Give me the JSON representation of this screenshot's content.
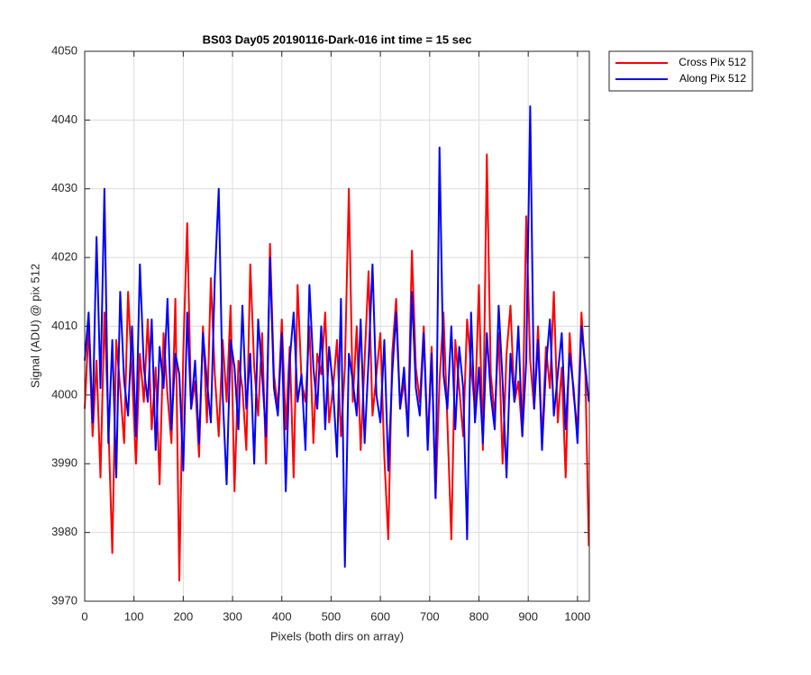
{
  "chart_data": {
    "type": "line",
    "title": "BS03 Day05 20190116-Dark-016 int time = 15 sec",
    "xlabel": "Pixels (both dirs on array)",
    "ylabel": "Signal (ADU) @ pix 512",
    "x": [
      0,
      8,
      16,
      24,
      32,
      40,
      48,
      56,
      64,
      72,
      80,
      88,
      96,
      104,
      112,
      120,
      128,
      136,
      144,
      152,
      160,
      168,
      176,
      184,
      192,
      200,
      208,
      216,
      224,
      232,
      240,
      248,
      256,
      264,
      272,
      280,
      288,
      296,
      304,
      312,
      320,
      328,
      336,
      344,
      352,
      360,
      368,
      376,
      384,
      392,
      400,
      408,
      416,
      424,
      432,
      440,
      448,
      456,
      464,
      472,
      480,
      488,
      496,
      504,
      512,
      520,
      528,
      536,
      544,
      552,
      560,
      568,
      576,
      584,
      592,
      600,
      608,
      616,
      624,
      632,
      640,
      648,
      656,
      664,
      672,
      680,
      688,
      696,
      704,
      712,
      720,
      728,
      736,
      744,
      752,
      760,
      768,
      776,
      784,
      792,
      800,
      808,
      816,
      824,
      832,
      840,
      848,
      856,
      864,
      872,
      880,
      888,
      896,
      904,
      912,
      920,
      928,
      936,
      944,
      952,
      960,
      968,
      976,
      984,
      992,
      1000,
      1008,
      1016,
      1023
    ],
    "series": [
      {
        "name": "Cross Pix 512",
        "color": "#ff0000",
        "values": [
          3998,
          4010,
          3994,
          4005,
          3988,
          4012,
          3996,
          3977,
          4008,
          4001,
          3993,
          4015,
          4003,
          3990,
          4006,
          3999,
          4011,
          3995,
          4004,
          3987,
          4009,
          4000,
          3993,
          4014,
          3973,
          4006,
          4025,
          3998,
          4002,
          3991,
          4010,
          3996,
          4017,
          4003,
          3994,
          4008,
          3999,
          4013,
          3986,
          4005,
          4001,
          3992,
          4019,
          4004,
          3997,
          4009,
          3990,
          4022,
          4003,
          3998,
          4011,
          3995,
          4007,
          3988,
          4016,
          4002,
          3999,
          4010,
          3993,
          4006,
          4003,
          4012,
          3996,
          4001,
          4008,
          3994,
          4004,
          4030,
          3999,
          4010,
          3992,
          4005,
          4018,
          3997,
          4003,
          4009,
          3991,
          3979,
          4006,
          4014,
          3998,
          4002,
          3995,
          4021,
          4004,
          3999,
          4010,
          3993,
          4007,
          3985,
          4002,
          4012,
          3996,
          3979,
          4008,
          4001,
          3994,
          4011,
          4004,
          3998,
          4016,
          3992,
          4035,
          4003,
          3997,
          4009,
          3990,
          4006,
          4013,
          3999,
          4002,
          3994,
          4026,
          4005,
          3998,
          4010,
          3993,
          4007,
          4001,
          4015,
          3996,
          4004,
          3988,
          4009,
          4000,
          3995,
          4012,
          4003,
          3978
        ]
      },
      {
        "name": "Along Pix 512",
        "color": "#0000ff",
        "values": [
          4005,
          4012,
          3996,
          4023,
          4001,
          4030,
          3993,
          4008,
          3988,
          4015,
          4002,
          3997,
          4010,
          3994,
          4019,
          4004,
          3999,
          4011,
          3992,
          4007,
          4001,
          4014,
          3995,
          4006,
          4003,
          3989,
          4012,
          3998,
          4005,
          3993,
          4009,
          4002,
          3996,
          4017,
          4030,
          4000,
          3987,
          4008,
          4004,
          3995,
          4013,
          3998,
          4006,
          3990,
          4011,
          4003,
          3994,
          4020,
          4001,
          3997,
          4009,
          3986,
          4005,
          4012,
          3999,
          4003,
          3992,
          4016,
          4004,
          3998,
          4010,
          3995,
          4007,
          4001,
          3991,
          4014,
          3975,
          4006,
          4002,
          3997,
          4011,
          3993,
          4005,
          4019,
          4000,
          3996,
          4008,
          3989,
          4003,
          4012,
          3998,
          4004,
          3994,
          4015,
          4001,
          3997,
          4009,
          3992,
          4006,
          3985,
          4036,
          4003,
          3998,
          4010,
          3995,
          4007,
          4001,
          3979,
          4012,
          3996,
          4004,
          3993,
          4009,
          4000,
          3995,
          4013,
          4002,
          3988,
          4006,
          3999,
          4010,
          3994,
          4005,
          4042,
          3998,
          4008,
          3992,
          4004,
          4011,
          3997,
          4003,
          4009,
          3995,
          4006,
          4001,
          3993,
          4010,
          4004,
          3999
        ]
      }
    ],
    "xlim": [
      0,
      1024
    ],
    "xticks": [
      0,
      100,
      200,
      300,
      400,
      500,
      600,
      700,
      800,
      900,
      1000
    ],
    "ylim": [
      3970,
      4050
    ],
    "yticks": [
      3970,
      3980,
      3990,
      4000,
      4010,
      4020,
      4030,
      4040,
      4050
    ],
    "grid": true,
    "legend": "northeastoutside"
  }
}
